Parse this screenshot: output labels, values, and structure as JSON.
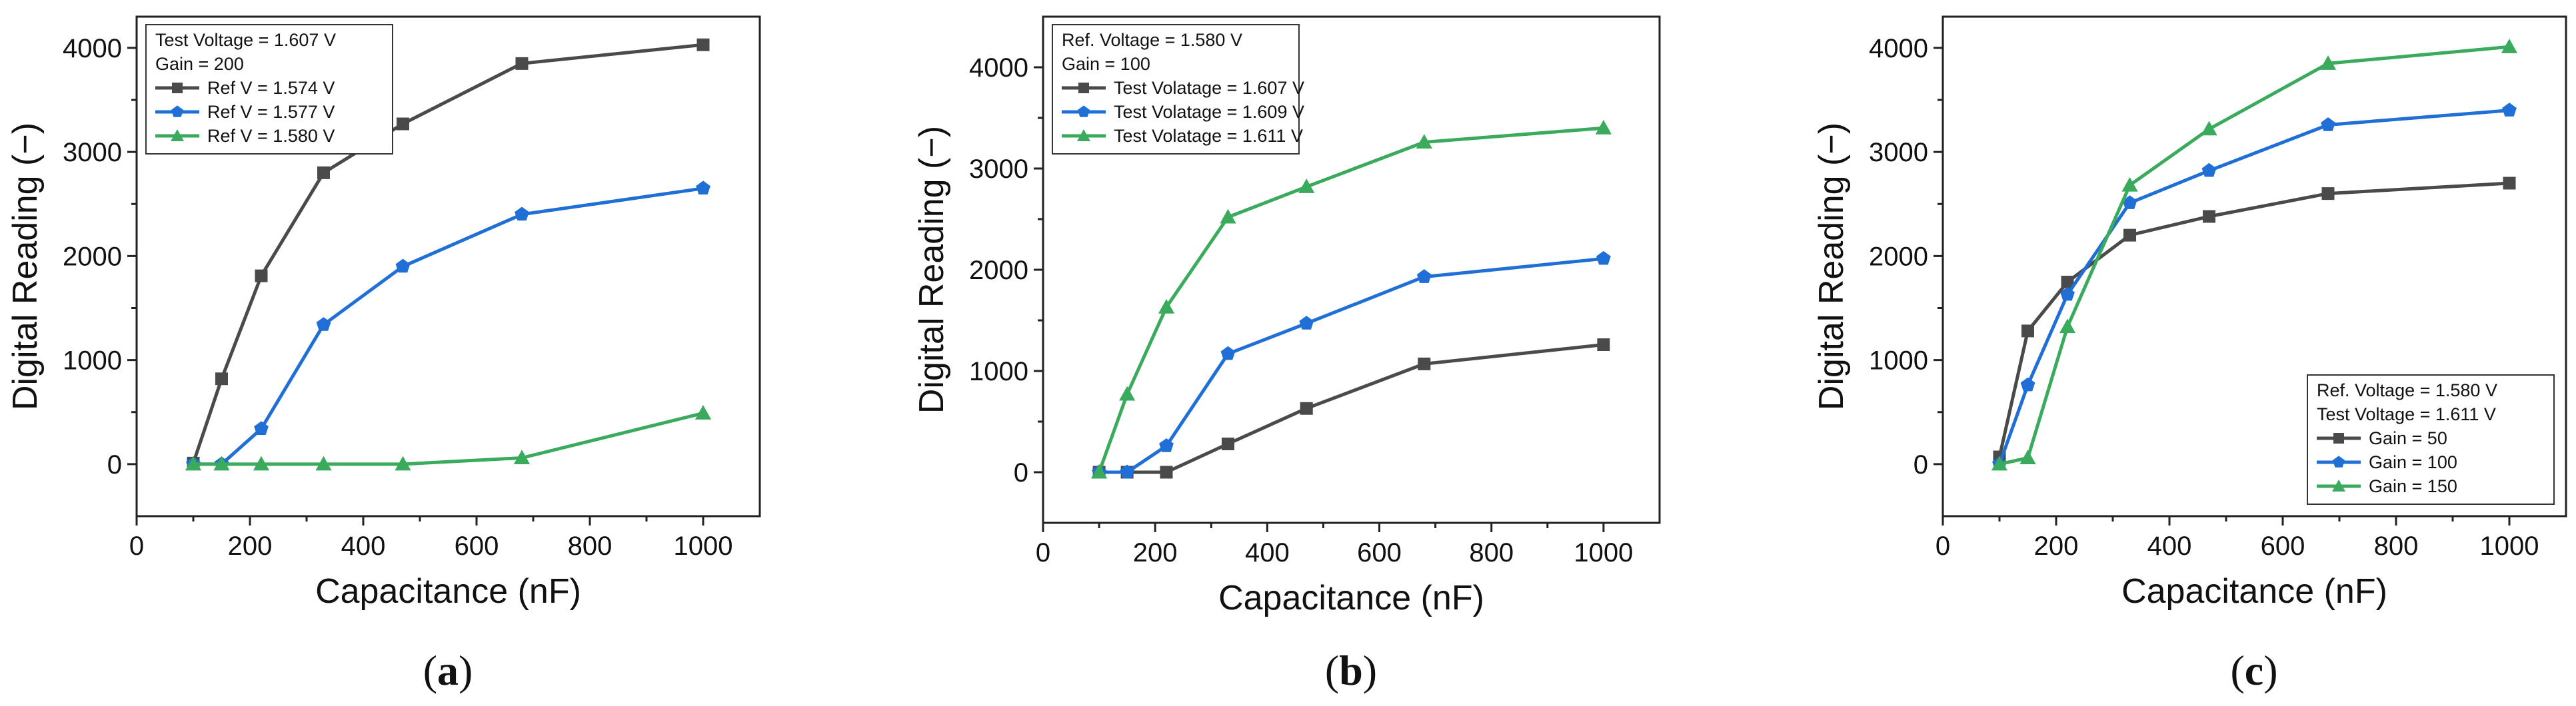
{
  "chart_data": [
    {
      "type": "line",
      "panel_label": "a",
      "xlabel": "Capacitance (nF)",
      "ylabel": "Digital Reading (−)",
      "xlim": [
        0,
        1100
      ],
      "ylim": [
        -500,
        4300
      ],
      "xticks": [
        0,
        200,
        400,
        600,
        800,
        1000
      ],
      "yticks": [
        0,
        1000,
        2000,
        3000,
        4000
      ],
      "x": [
        100,
        150,
        220,
        330,
        470,
        680,
        1000
      ],
      "legend_position": "top-left",
      "legend_header": [
        "Test Voltage = 1.607 V",
        "Gain = 200"
      ],
      "series": [
        {
          "name": "Ref V = 1.574 V",
          "color": "#4a4a4a",
          "marker": "square",
          "values": [
            10,
            820,
            1810,
            2800,
            3270,
            3850,
            4030
          ]
        },
        {
          "name": "Ref V = 1.577 V",
          "color": "#1f6fd6",
          "marker": "pentagon",
          "values": [
            0,
            0,
            340,
            1340,
            1900,
            2400,
            2650
          ]
        },
        {
          "name": "Ref V = 1.580 V",
          "color": "#3aaa5c",
          "marker": "triangle",
          "values": [
            0,
            0,
            0,
            0,
            0,
            60,
            490
          ]
        }
      ]
    },
    {
      "type": "line",
      "panel_label": "b",
      "xlabel": "Capacitance (nF)",
      "ylabel": "Digital Reading (−)",
      "xlim": [
        0,
        1100
      ],
      "ylim": [
        -500,
        4500
      ],
      "xticks": [
        0,
        200,
        400,
        600,
        800,
        1000
      ],
      "yticks": [
        0,
        1000,
        2000,
        3000,
        4000
      ],
      "x": [
        100,
        150,
        220,
        330,
        470,
        680,
        1000
      ],
      "legend_position": "top-left",
      "legend_header": [
        "Ref. Voltage = 1.580 V",
        "Gain = 100"
      ],
      "series": [
        {
          "name": "Test Volatage = 1.607 V",
          "color": "#4a4a4a",
          "marker": "square",
          "values": [
            0,
            0,
            0,
            280,
            630,
            1070,
            1260
          ]
        },
        {
          "name": "Test Volatage = 1.609 V",
          "color": "#1f6fd6",
          "marker": "pentagon",
          "values": [
            0,
            0,
            260,
            1170,
            1470,
            1930,
            2110
          ]
        },
        {
          "name": "Test Volatage = 1.611 V",
          "color": "#3aaa5c",
          "marker": "triangle",
          "values": [
            0,
            770,
            1630,
            2520,
            2820,
            3260,
            3400
          ]
        }
      ]
    },
    {
      "type": "line",
      "panel_label": "c",
      "xlabel": "Capacitance (nF)",
      "ylabel": "Digital Reading (−)",
      "xlim": [
        0,
        1100
      ],
      "ylim": [
        -500,
        4300
      ],
      "xticks": [
        0,
        200,
        400,
        600,
        800,
        1000
      ],
      "yticks": [
        0,
        1000,
        2000,
        3000,
        4000
      ],
      "x": [
        100,
        150,
        220,
        330,
        470,
        680,
        1000
      ],
      "legend_position": "bottom-right",
      "legend_header": [
        "Ref. Voltage = 1.580 V",
        "Test Voltage = 1.611 V"
      ],
      "series": [
        {
          "name": "Gain = 50",
          "color": "#4a4a4a",
          "marker": "square",
          "values": [
            70,
            1280,
            1750,
            2200,
            2380,
            2600,
            2700
          ]
        },
        {
          "name": "Gain = 100",
          "color": "#1f6fd6",
          "marker": "pentagon",
          "values": [
            0,
            760,
            1630,
            2510,
            2820,
            3260,
            3400
          ]
        },
        {
          "name": "Gain = 150",
          "color": "#3aaa5c",
          "marker": "triangle",
          "values": [
            0,
            60,
            1320,
            2680,
            3220,
            3850,
            4010
          ]
        }
      ]
    }
  ]
}
